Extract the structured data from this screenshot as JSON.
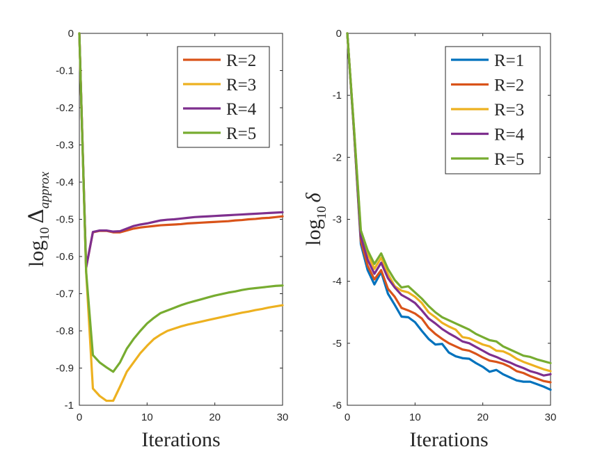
{
  "chart_data": [
    {
      "type": "line",
      "ylabel": {
        "prefix": "log",
        "base": "10",
        "symbol": "Δ",
        "subscript": "approx"
      },
      "xlabel": "Iterations",
      "xlim": [
        0,
        30
      ],
      "ylim": [
        -1,
        0
      ],
      "xticks": [
        0,
        10,
        20,
        30
      ],
      "yticks": [
        0,
        -0.1,
        -0.2,
        -0.3,
        -0.4,
        -0.5,
        -0.6,
        -0.7,
        -0.8,
        -0.9,
        -1
      ],
      "ytick_labels": [
        "0",
        "-0.1",
        "-0.2",
        "-0.3",
        "-0.4",
        "-0.5",
        "-0.6",
        "-0.7",
        "-0.8",
        "-0.9",
        "-1"
      ],
      "xtick_labels": [
        "0",
        "10",
        "20",
        "30"
      ],
      "legend_position": "top-right",
      "x": [
        0,
        1,
        2,
        3,
        4,
        5,
        6,
        7,
        8,
        9,
        10,
        11,
        12,
        13,
        14,
        15,
        16,
        17,
        18,
        19,
        20,
        21,
        22,
        23,
        24,
        25,
        26,
        27,
        28,
        29,
        30
      ],
      "series": [
        {
          "name": "R=2",
          "color": "#d95319",
          "values": [
            0,
            -0.63,
            -0.535,
            -0.531,
            -0.531,
            -0.535,
            -0.535,
            -0.53,
            -0.525,
            -0.522,
            -0.52,
            -0.518,
            -0.516,
            -0.515,
            -0.514,
            -0.513,
            -0.511,
            -0.51,
            -0.509,
            -0.508,
            -0.507,
            -0.506,
            -0.505,
            -0.503,
            -0.502,
            -0.5,
            -0.499,
            -0.497,
            -0.496,
            -0.494,
            -0.492
          ]
        },
        {
          "name": "R=3",
          "color": "#edb120",
          "values": [
            0,
            -0.64,
            -0.955,
            -0.975,
            -0.988,
            -0.988,
            -0.95,
            -0.91,
            -0.885,
            -0.86,
            -0.84,
            -0.822,
            -0.81,
            -0.8,
            -0.794,
            -0.788,
            -0.783,
            -0.779,
            -0.775,
            -0.771,
            -0.767,
            -0.763,
            -0.759,
            -0.755,
            -0.751,
            -0.748,
            -0.744,
            -0.741,
            -0.737,
            -0.734,
            -0.731
          ]
        },
        {
          "name": "R=4",
          "color": "#7e2f8e",
          "values": [
            0,
            -0.63,
            -0.534,
            -0.53,
            -0.53,
            -0.533,
            -0.532,
            -0.525,
            -0.518,
            -0.514,
            -0.511,
            -0.507,
            -0.503,
            -0.501,
            -0.5,
            -0.498,
            -0.496,
            -0.494,
            -0.493,
            -0.492,
            -0.491,
            -0.49,
            -0.489,
            -0.488,
            -0.487,
            -0.486,
            -0.485,
            -0.484,
            -0.483,
            -0.482,
            -0.481
          ]
        },
        {
          "name": "R=5",
          "color": "#77ac30",
          "values": [
            0,
            -0.64,
            -0.865,
            -0.885,
            -0.898,
            -0.91,
            -0.885,
            -0.848,
            -0.822,
            -0.8,
            -0.78,
            -0.765,
            -0.752,
            -0.745,
            -0.738,
            -0.731,
            -0.725,
            -0.72,
            -0.715,
            -0.71,
            -0.705,
            -0.701,
            -0.697,
            -0.694,
            -0.69,
            -0.687,
            -0.685,
            -0.683,
            -0.681,
            -0.679,
            -0.678
          ]
        }
      ]
    },
    {
      "type": "line",
      "ylabel": {
        "prefix": "log",
        "base": "10",
        "symbol": "δ"
      },
      "xlabel": "Iterations",
      "xlim": [
        0,
        30
      ],
      "ylim": [
        -6,
        0
      ],
      "xticks": [
        0,
        10,
        20,
        30
      ],
      "yticks": [
        0,
        -1,
        -2,
        -3,
        -4,
        -5,
        -6
      ],
      "ytick_labels": [
        "0",
        "-1",
        "-2",
        "-3",
        "-4",
        "-5",
        "-6"
      ],
      "xtick_labels": [
        "0",
        "10",
        "20",
        "30"
      ],
      "legend_position": "top-right",
      "x": [
        0,
        1,
        2,
        3,
        4,
        5,
        6,
        7,
        8,
        9,
        10,
        11,
        12,
        13,
        14,
        15,
        16,
        17,
        18,
        19,
        20,
        21,
        22,
        23,
        24,
        25,
        26,
        27,
        28,
        29,
        30
      ],
      "series": [
        {
          "name": "R=1",
          "color": "#0072bd",
          "values": [
            0,
            -1.6,
            -3.4,
            -3.82,
            -4.05,
            -3.85,
            -4.2,
            -4.38,
            -4.57,
            -4.58,
            -4.66,
            -4.8,
            -4.93,
            -5.02,
            -5.01,
            -5.15,
            -5.21,
            -5.24,
            -5.25,
            -5.32,
            -5.38,
            -5.46,
            -5.43,
            -5.5,
            -5.55,
            -5.6,
            -5.62,
            -5.62,
            -5.66,
            -5.7,
            -5.75
          ]
        },
        {
          "name": "R=2",
          "color": "#d95319",
          "values": [
            0,
            -1.6,
            -3.35,
            -3.75,
            -3.97,
            -3.82,
            -4.12,
            -4.25,
            -4.43,
            -4.47,
            -4.52,
            -4.6,
            -4.75,
            -4.85,
            -4.93,
            -5.0,
            -5.05,
            -5.1,
            -5.12,
            -5.17,
            -5.23,
            -5.28,
            -5.3,
            -5.33,
            -5.38,
            -5.45,
            -5.48,
            -5.53,
            -5.57,
            -5.61,
            -5.63
          ]
        },
        {
          "name": "R=3",
          "color": "#edb120",
          "values": [
            0,
            -1.55,
            -3.22,
            -3.55,
            -3.8,
            -3.62,
            -3.88,
            -4.08,
            -4.15,
            -4.18,
            -4.25,
            -4.35,
            -4.5,
            -4.58,
            -4.67,
            -4.73,
            -4.78,
            -4.9,
            -4.92,
            -4.97,
            -5.02,
            -5.05,
            -5.12,
            -5.13,
            -5.18,
            -5.25,
            -5.3,
            -5.34,
            -5.38,
            -5.42,
            -5.45
          ]
        },
        {
          "name": "R=4",
          "color": "#7e2f8e",
          "values": [
            0,
            -1.58,
            -3.28,
            -3.65,
            -3.88,
            -3.7,
            -3.95,
            -4.1,
            -4.22,
            -4.28,
            -4.35,
            -4.47,
            -4.6,
            -4.68,
            -4.77,
            -4.84,
            -4.9,
            -4.97,
            -5.0,
            -5.06,
            -5.12,
            -5.18,
            -5.22,
            -5.27,
            -5.31,
            -5.36,
            -5.4,
            -5.45,
            -5.48,
            -5.52,
            -5.5
          ]
        },
        {
          "name": "R=5",
          "color": "#77ac30",
          "values": [
            0,
            -1.55,
            -3.18,
            -3.5,
            -3.72,
            -3.55,
            -3.8,
            -3.98,
            -4.1,
            -4.08,
            -4.18,
            -4.28,
            -4.4,
            -4.5,
            -4.58,
            -4.63,
            -4.68,
            -4.73,
            -4.78,
            -4.85,
            -4.9,
            -4.95,
            -4.97,
            -5.05,
            -5.1,
            -5.15,
            -5.2,
            -5.22,
            -5.26,
            -5.29,
            -5.32
          ]
        }
      ]
    }
  ]
}
